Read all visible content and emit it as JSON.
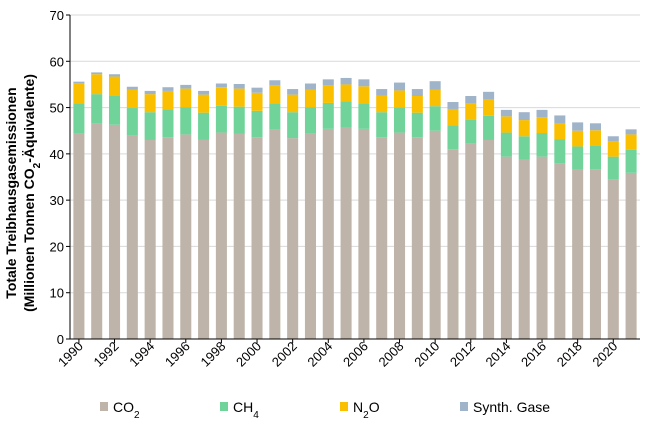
{
  "chart_data": {
    "type": "bar",
    "stacked": true,
    "grid": "horizontal",
    "legend_position": "bottom",
    "ylabel": {
      "line1": "Totale Treibhausgasemissionen",
      "line2_prefix": "(Millionen Tonnen CO",
      "line2_sub": "2",
      "line2_suffix": "-Äquivalente)"
    },
    "ylim": [
      0,
      70
    ],
    "yticks": [
      0,
      10,
      20,
      30,
      40,
      50,
      60,
      70
    ],
    "x": [
      1990,
      1991,
      1992,
      1993,
      1994,
      1995,
      1996,
      1997,
      1998,
      1999,
      2000,
      2001,
      2002,
      2003,
      2004,
      2005,
      2006,
      2007,
      2008,
      2009,
      2010,
      2011,
      2012,
      2013,
      2014,
      2015,
      2016,
      2017,
      2018,
      2019,
      2020,
      2021
    ],
    "xtick_labels": [
      "1990",
      "1992",
      "1994",
      "1996",
      "1998",
      "2000",
      "2002",
      "2004",
      "2006",
      "2008",
      "2010",
      "2012",
      "2014",
      "2016",
      "2018",
      "2020"
    ],
    "series": [
      {
        "key": "co2",
        "name": "CO₂",
        "name_base": "CO",
        "name_sub": "2",
        "color": "#bfb4a9",
        "values": [
          44.5,
          46.5,
          46.3,
          43.9,
          43.0,
          43.6,
          44.2,
          43.1,
          44.6,
          44.4,
          43.6,
          45.2,
          43.4,
          44.5,
          45.4,
          45.8,
          45.4,
          43.6,
          44.6,
          43.6,
          45.0,
          41.0,
          42.2,
          43.0,
          39.4,
          38.7,
          39.4,
          38.0,
          36.6,
          36.7,
          34.4,
          35.9
        ]
      },
      {
        "key": "ch4",
        "name": "CH₄",
        "name_base": "CH",
        "name_sub": "4",
        "color": "#6fd39a",
        "values": [
          6.4,
          6.4,
          6.2,
          6.0,
          6.0,
          6.0,
          5.9,
          5.8,
          5.8,
          5.8,
          5.7,
          5.7,
          5.6,
          5.6,
          5.6,
          5.5,
          5.5,
          5.4,
          5.4,
          5.3,
          5.3,
          5.2,
          5.2,
          5.2,
          5.2,
          5.1,
          5.1,
          5.1,
          5.0,
          5.0,
          5.0,
          5.0
        ]
      },
      {
        "key": "n2o",
        "name": "N₂O",
        "name_base": "N",
        "name_sub": "2",
        "name_suffix": "O",
        "color": "#fac000",
        "values": [
          4.4,
          4.3,
          4.2,
          4.0,
          3.9,
          4.0,
          4.0,
          3.9,
          4.0,
          3.9,
          3.9,
          3.9,
          3.8,
          3.8,
          3.8,
          3.7,
          3.7,
          3.6,
          3.7,
          3.6,
          3.6,
          3.5,
          3.5,
          3.5,
          3.5,
          3.5,
          3.4,
          3.4,
          3.4,
          3.4,
          3.3,
          3.3
        ]
      },
      {
        "key": "synth",
        "name": "Synth. Gase",
        "color": "#9fb4c9",
        "values": [
          0.3,
          0.4,
          0.5,
          0.6,
          0.7,
          0.8,
          0.8,
          0.8,
          0.8,
          1.0,
          1.1,
          1.1,
          1.2,
          1.3,
          1.3,
          1.4,
          1.5,
          1.4,
          1.7,
          1.5,
          1.8,
          1.5,
          1.6,
          1.7,
          1.4,
          1.7,
          1.6,
          1.8,
          1.8,
          1.5,
          1.1,
          1.1
        ]
      }
    ]
  }
}
